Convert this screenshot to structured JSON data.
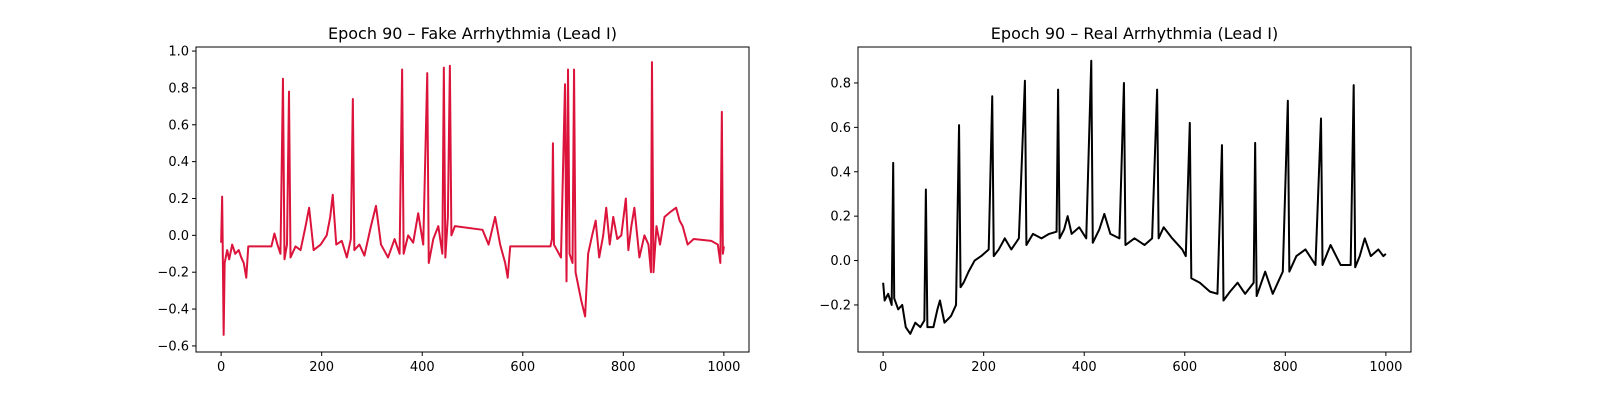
{
  "chart_data": [
    {
      "type": "line",
      "title": "Epoch 90 – Fake Arrhythmia (Lead I)",
      "color": "#dc143c",
      "x": [
        0,
        2,
        3,
        5,
        7,
        12,
        16,
        22,
        28,
        35,
        40,
        45,
        50,
        54,
        100,
        106,
        112,
        118,
        123,
        126,
        131,
        135,
        138,
        148,
        158,
        168,
        175,
        184,
        198,
        210,
        217,
        222,
        229,
        240,
        250,
        258,
        262,
        265,
        275,
        285,
        298,
        308,
        318,
        332,
        345,
        355,
        360,
        363,
        372,
        382,
        392,
        402,
        410,
        413,
        422,
        432,
        440,
        443,
        446,
        451,
        455,
        458,
        465,
        520,
        532,
        545,
        555,
        565,
        570,
        575,
        655,
        658,
        660,
        662,
        676,
        684,
        687,
        690,
        693,
        699,
        702,
        705,
        716,
        724,
        730,
        738,
        745,
        752,
        760,
        766,
        773,
        780,
        788,
        796,
        805,
        810,
        816,
        822,
        832,
        842,
        850,
        855,
        857,
        860,
        866,
        873,
        882,
        895,
        905,
        912,
        918,
        928,
        940,
        975,
        988,
        993,
        996,
        998,
        1000
      ],
      "values": [
        -0.04,
        0.21,
        -0.02,
        -0.54,
        -0.15,
        -0.08,
        -0.13,
        -0.05,
        -0.1,
        -0.08,
        -0.12,
        -0.15,
        -0.23,
        -0.06,
        -0.06,
        0.01,
        -0.05,
        -0.1,
        0.85,
        -0.13,
        -0.05,
        0.78,
        -0.12,
        -0.06,
        -0.08,
        0.05,
        0.15,
        -0.08,
        -0.05,
        0.0,
        0.1,
        0.22,
        -0.05,
        -0.03,
        -0.12,
        -0.02,
        0.74,
        -0.08,
        -0.05,
        -0.11,
        0.05,
        0.16,
        -0.05,
        -0.12,
        -0.02,
        -0.1,
        0.9,
        -0.1,
        0.0,
        -0.04,
        0.12,
        -0.05,
        0.88,
        -0.15,
        -0.02,
        0.05,
        -0.1,
        0.91,
        -0.12,
        0.1,
        0.92,
        0.0,
        0.05,
        0.03,
        -0.05,
        0.1,
        -0.05,
        -0.15,
        -0.23,
        -0.06,
        -0.06,
        -0.02,
        0.5,
        -0.05,
        -0.12,
        0.82,
        -0.25,
        0.9,
        -0.1,
        -0.15,
        0.9,
        -0.2,
        -0.35,
        -0.44,
        -0.1,
        0.0,
        0.08,
        -0.12,
        0.0,
        0.15,
        -0.05,
        0.1,
        -0.02,
        0.0,
        0.2,
        -0.08,
        0.05,
        0.15,
        -0.12,
        0.0,
        -0.05,
        -0.2,
        0.94,
        -0.2,
        0.05,
        -0.05,
        0.1,
        0.13,
        0.15,
        0.08,
        0.05,
        -0.05,
        -0.02,
        -0.03,
        -0.05,
        -0.15,
        0.67,
        -0.1,
        -0.06
      ],
      "xlim": [
        -50,
        1050
      ],
      "xticks": [
        0,
        200,
        400,
        600,
        800,
        1000
      ],
      "ylim": [
        -0.633,
        1.022
      ],
      "yticks": [
        {
          "value": -0.6,
          "label": "−0.6"
        },
        {
          "value": -0.4,
          "label": "−0.4"
        },
        {
          "value": -0.2,
          "label": "−0.2"
        },
        {
          "value": 0,
          "label": "0.0"
        },
        {
          "value": 0.2,
          "label": "0.2"
        },
        {
          "value": 0.4,
          "label": "0.4"
        },
        {
          "value": 0.6,
          "label": "0.6"
        },
        {
          "value": 0.8,
          "label": "0.8"
        },
        {
          "value": 1.0,
          "label": "1.0"
        }
      ]
    },
    {
      "type": "line",
      "title": "Epoch 90 – Real Arrhythmia (Lead I)",
      "color": "#000000",
      "x": [
        0,
        3,
        10,
        17,
        20,
        22,
        30,
        38,
        45,
        54,
        64,
        74,
        82,
        85,
        88,
        100,
        108,
        113,
        122,
        135,
        145,
        151,
        154,
        160,
        170,
        182,
        195,
        210,
        217,
        220,
        230,
        242,
        255,
        270,
        282,
        285,
        298,
        315,
        330,
        345,
        348,
        351,
        360,
        367,
        375,
        390,
        404,
        414,
        417,
        430,
        440,
        452,
        470,
        479,
        482,
        500,
        520,
        535,
        545,
        548,
        558,
        575,
        595,
        602,
        610,
        613,
        630,
        650,
        665,
        674,
        677,
        690,
        705,
        720,
        737,
        740,
        743,
        760,
        775,
        795,
        805,
        808,
        822,
        840,
        860,
        871,
        874,
        890,
        910,
        930,
        936,
        939,
        948,
        958,
        970,
        985,
        995,
        1000
      ],
      "values": [
        -0.1,
        -0.18,
        -0.15,
        -0.2,
        0.44,
        -0.17,
        -0.22,
        -0.2,
        -0.3,
        -0.33,
        -0.28,
        -0.3,
        -0.27,
        0.32,
        -0.3,
        -0.3,
        -0.22,
        -0.18,
        -0.28,
        -0.25,
        -0.2,
        0.61,
        -0.12,
        -0.1,
        -0.05,
        0.0,
        0.02,
        0.05,
        0.74,
        0.02,
        0.05,
        0.1,
        0.05,
        0.1,
        0.81,
        0.07,
        0.12,
        0.1,
        0.12,
        0.13,
        0.77,
        0.1,
        0.14,
        0.2,
        0.12,
        0.15,
        0.1,
        0.9,
        0.08,
        0.14,
        0.21,
        0.12,
        0.1,
        0.8,
        0.07,
        0.1,
        0.07,
        0.1,
        0.77,
        0.1,
        0.15,
        0.1,
        0.05,
        0.02,
        0.62,
        -0.08,
        -0.1,
        -0.14,
        -0.15,
        0.52,
        -0.18,
        -0.14,
        -0.1,
        -0.15,
        -0.1,
        0.53,
        -0.16,
        -0.05,
        -0.15,
        -0.05,
        0.72,
        -0.05,
        0.02,
        0.05,
        -0.02,
        0.64,
        -0.02,
        0.07,
        -0.02,
        -0.02,
        0.79,
        -0.03,
        0.02,
        0.1,
        0.02,
        0.05,
        0.02,
        0.03
      ],
      "xlim": [
        -50,
        1050
      ],
      "xticks": [
        0,
        200,
        400,
        600,
        800,
        1000
      ],
      "ylim": [
        -0.412,
        0.962
      ],
      "yticks": [
        {
          "value": -0.2,
          "label": "−0.2"
        },
        {
          "value": 0,
          "label": "0.0"
        },
        {
          "value": 0.2,
          "label": "0.2"
        },
        {
          "value": 0.4,
          "label": "0.4"
        },
        {
          "value": 0.6,
          "label": "0.6"
        },
        {
          "value": 0.8,
          "label": "0.8"
        }
      ]
    }
  ]
}
